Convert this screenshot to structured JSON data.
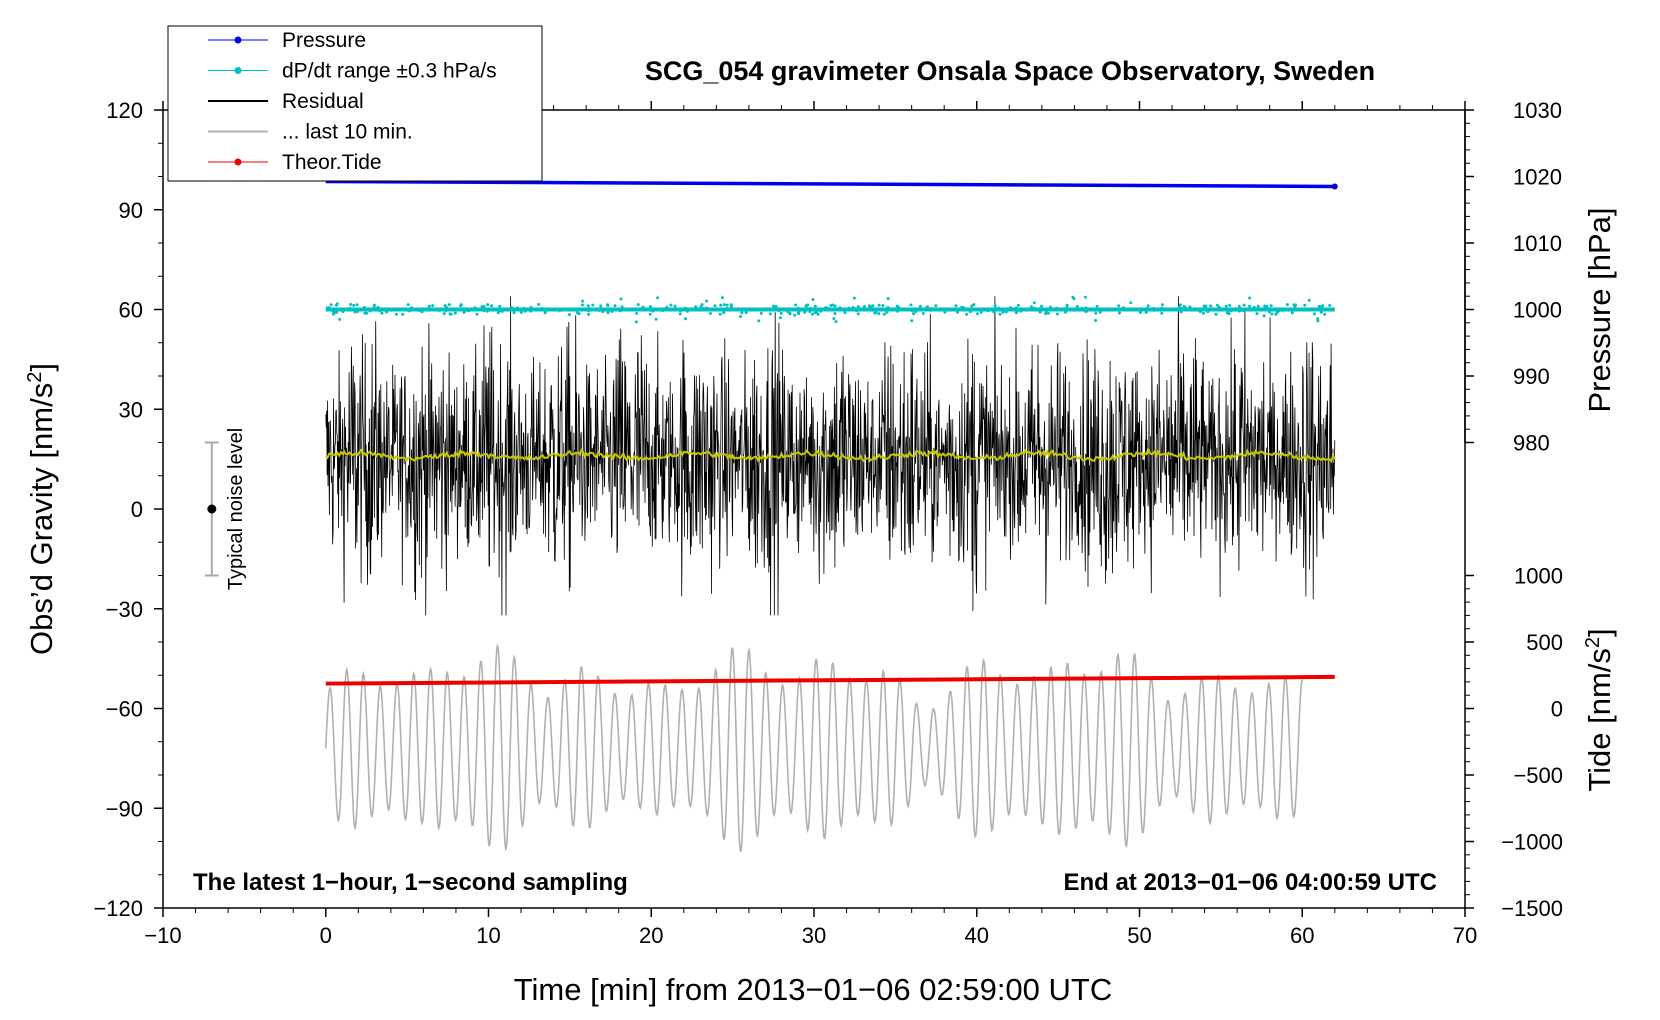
{
  "chart_data": {
    "type": "line",
    "title": "SCG_054 gravimeter Onsala Space Observatory, Sweden",
    "xlabel": "Time [min] from 2013−01−06 02:59:00 UTC",
    "ylabel": "Obs’d Gravity [nm/s",
    "ylabel_sup": "2",
    "ylabel_close": "]",
    "y2label_pressure": "Pressure [hPa]",
    "y2label_tide": "Tide [nm/s",
    "y2label_tide_sup": "2",
    "y2label_tide_close": "]",
    "xlim": [
      -10,
      70
    ],
    "ylim": [
      -120,
      120
    ],
    "x_ticks": [
      -10,
      0,
      10,
      20,
      30,
      40,
      50,
      60,
      70
    ],
    "x_tick_labels": [
      "−10",
      "0",
      "10",
      "20",
      "30",
      "40",
      "50",
      "60",
      "70"
    ],
    "y_ticks": [
      -120,
      -90,
      -60,
      -30,
      0,
      30,
      60,
      90,
      120
    ],
    "y_tick_labels": [
      "−120",
      "−90",
      "−60",
      "−30",
      "0",
      "30",
      "60",
      "90",
      "120"
    ],
    "pressure_axis": {
      "ticks": [
        980,
        990,
        1000,
        1010,
        1020,
        1030
      ],
      "labels": [
        "980",
        "990",
        "1000",
        "1010",
        "1020",
        "1030"
      ],
      "map_to_left": [
        [
          980,
          20
        ],
        [
          1030,
          120
        ]
      ]
    },
    "tide_axis": {
      "ticks": [
        -1500,
        -1000,
        -500,
        0,
        500,
        1000
      ],
      "labels": [
        "−1500",
        "−1000",
        "−500",
        "0",
        "500",
        "1000"
      ],
      "map_to_left": [
        [
          -1500,
          -120
        ],
        [
          1000,
          -20
        ]
      ]
    },
    "legend": [
      {
        "label": "Pressure",
        "color": "#0000ee",
        "marker": true
      },
      {
        "label": "dP/dt range ±0.3 hPa/s",
        "color": "#00c0c0",
        "marker": true
      },
      {
        "label": "Residual",
        "color": "#000000",
        "marker": false
      },
      {
        "label": "... last 10 min.",
        "color": "#b0b0b0",
        "marker": false
      },
      {
        "label": "Theor.Tide",
        "color": "#ee0000",
        "marker": true
      }
    ],
    "series": [
      {
        "name": "Pressure",
        "color": "#0000ee",
        "x_range": [
          0,
          62
        ],
        "y_start": 98.5,
        "y_end": 97.0
      },
      {
        "name": "dP/dt range ±0.3 hPa/s",
        "color": "#00c0c0",
        "x_range": [
          0,
          62
        ],
        "y_center": 60,
        "y_spread": 1.5
      },
      {
        "name": "Residual",
        "color": "#000000",
        "x_range": [
          0,
          62
        ],
        "y_center": 15,
        "y_min": -32,
        "y_max": 64
      },
      {
        "name": "Residual mean",
        "color": "#c8c800",
        "x_range": [
          0,
          62
        ],
        "y_center": 16
      },
      {
        "name": "... last 10 min.",
        "color": "#b0b0b0",
        "x_range": [
          0,
          60
        ],
        "y_center": -72,
        "y_min": -113,
        "y_max": -38
      },
      {
        "name": "Theor.Tide",
        "color": "#ee0000",
        "x_range": [
          0,
          62
        ],
        "y_start": -52.5,
        "y_end": -50.5
      }
    ],
    "noise_level": {
      "label": "Typical noise level",
      "x": -7,
      "y": 0,
      "y_low": -20,
      "y_high": 20
    },
    "annotations": {
      "bottom_left": "The latest 1−hour, 1−second sampling",
      "bottom_right": "End at 2013−01−06 04:00:59 UTC"
    },
    "colors": {
      "axis": "#000000",
      "noise_bar": "#aaaaaa"
    }
  }
}
